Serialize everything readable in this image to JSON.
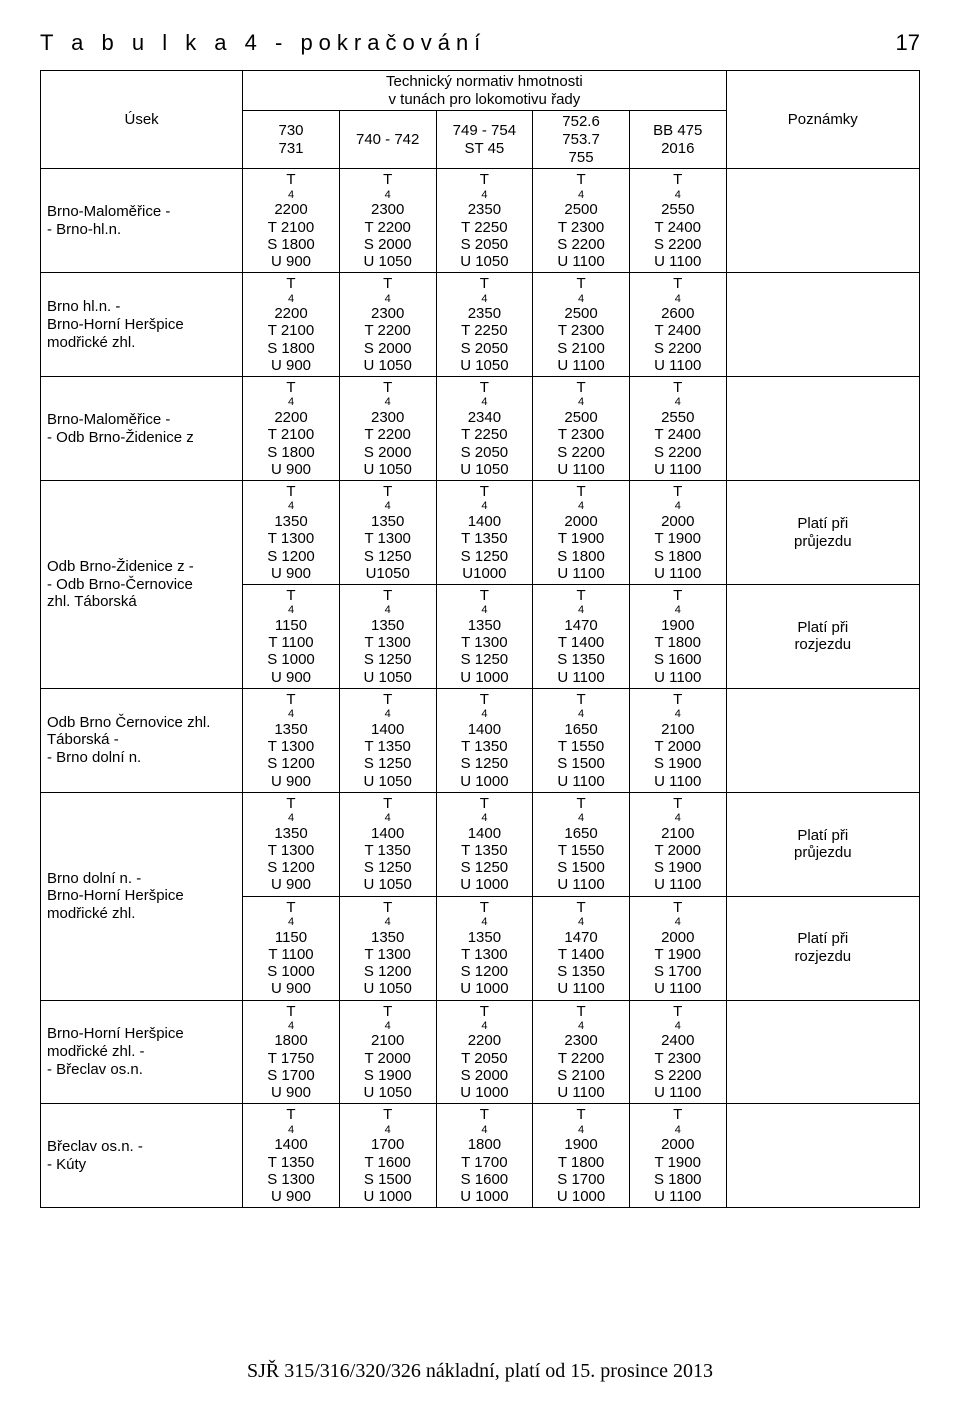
{
  "title_main": "T a b u l k a   4   -  pokračování",
  "title_num": "17",
  "header": {
    "usek": "Úsek",
    "norm_top": "Technický normativ hmotnosti",
    "norm_bot": "v tunách pro lokomotivu řady",
    "pozn": "Poznámky",
    "cols": [
      [
        "730",
        "731"
      ],
      [
        "740 - 742"
      ],
      [
        "749 - 754",
        "ST 45"
      ],
      [
        "752.6",
        "753.7",
        "755"
      ],
      [
        "BB 475",
        "2016"
      ]
    ]
  },
  "rows": [
    {
      "sect": [
        "Brno-Maloměřice -",
        "- Brno-hl.n."
      ],
      "cells": [
        [
          "T₄ 2200",
          "T  2100",
          "S 1800",
          "U  900"
        ],
        [
          "T₄ 2300",
          "T  2200",
          "S 2000",
          "U 1050"
        ],
        [
          "T₄ 2350",
          "T  2250",
          "S 2050",
          "U 1050"
        ],
        [
          "T₄ 2500",
          "T  2300",
          "S 2200",
          "U 1100"
        ],
        [
          "T₄ 2550",
          "T  2400",
          "S 2200",
          "U 1100"
        ]
      ],
      "pozn": []
    },
    {
      "sect": [
        "Brno hl.n. -",
        "Brno-Horní Heršpice",
        "modřické zhl."
      ],
      "cells": [
        [
          "T₄ 2200",
          "T  2100",
          "S 1800",
          "U  900"
        ],
        [
          "T₄ 2300",
          "T  2200",
          "S 2000",
          "U 1050"
        ],
        [
          "T₄ 2350",
          "T  2250",
          "S 2050",
          "U 1050"
        ],
        [
          "T₄ 2500",
          "T  2300",
          "S 2100",
          "U 1100"
        ],
        [
          "T₄ 2600",
          "T  2400",
          "S 2200",
          "U 1100"
        ]
      ],
      "pozn": []
    },
    {
      "sect": [
        " Brno-Maloměřice -",
        "- Odb Brno-Židenice z"
      ],
      "cells": [
        [
          "T₄ 2200",
          "T  2100",
          "S 1800",
          "U  900"
        ],
        [
          "T₄ 2300",
          "T  2200",
          "S 2000",
          "U 1050"
        ],
        [
          "T₄ 2340",
          "T  2250",
          "S 2050",
          "U 1050"
        ],
        [
          "T₄ 2500",
          "T  2300",
          "S 2200",
          "U 1100"
        ],
        [
          "T₄ 2550",
          "T  2400",
          "S 2200",
          "U 1100"
        ]
      ],
      "pozn": []
    },
    {
      "sect": [
        "Odb Brno-Židenice z -",
        "- Odb Brno-Černovice",
        "zhl. Táborská"
      ],
      "span": 2,
      "cells": [
        [
          "T₄ 1350",
          "T  1300",
          "S 1200",
          "U  900"
        ],
        [
          "T₄ 1350",
          "T  1300",
          "S 1250",
          "U1050"
        ],
        [
          "T₄ 1400",
          "T  1350",
          "S 1250",
          "U1000"
        ],
        [
          "T₄ 2000",
          "T  1900",
          "S 1800",
          "U 1100"
        ],
        [
          "T₄ 2000",
          "T  1900",
          "S 1800",
          "U 1100"
        ]
      ],
      "pozn": [
        "Platí při",
        "průjezdu"
      ]
    },
    {
      "cells": [
        [
          "T₄ 1150",
          "T  1100",
          "S 1000",
          "U  900"
        ],
        [
          "T₄ 1350",
          "T  1300",
          "S 1250",
          "U 1050"
        ],
        [
          "T₄ 1350",
          "T  1300",
          "S 1250",
          "U 1000"
        ],
        [
          "T₄ 1470",
          "T  1400",
          "S 1350",
          "U 1100"
        ],
        [
          "T₄ 1900",
          "T  1800",
          "S 1600",
          "U 1100"
        ]
      ],
      "pozn": [
        "Platí při",
        "rozjezdu"
      ]
    },
    {
      "sect": [
        "Odb Brno Černovice  zhl.",
        "Táborská -",
        "- Brno dolní n."
      ],
      "cells": [
        [
          "T₄ 1350",
          "T  1300",
          "S 1200",
          "U  900"
        ],
        [
          "T₄ 1400",
          "T  1350",
          "S 1250",
          "U 1050"
        ],
        [
          "T₄ 1400",
          "T  1350",
          "S 1250",
          "U 1000"
        ],
        [
          "T₄ 1650",
          "T  1550",
          "S 1500",
          "U 1100"
        ],
        [
          "T₄ 2100",
          "T  2000",
          "S 1900",
          "U 1100"
        ]
      ],
      "pozn": []
    },
    {
      "sect": [
        "Brno dolní n. -",
        "Brno-Horní Heršpice",
        "modřické zhl."
      ],
      "span": 2,
      "cells": [
        [
          "T₄ 1350",
          "T  1300",
          "S 1200",
          "U  900"
        ],
        [
          "T₄ 1400",
          "T  1350",
          "S 1250",
          "U 1050"
        ],
        [
          "T₄ 1400",
          "T  1350",
          "S 1250",
          "U 1000"
        ],
        [
          "T₄ 1650",
          "T  1550",
          "S 1500",
          "U 1100"
        ],
        [
          "T₄ 2100",
          "T  2000",
          "S 1900",
          "U 1100"
        ]
      ],
      "pozn": [
        "Platí při",
        "průjezdu"
      ]
    },
    {
      "cells": [
        [
          "T₄ 1150",
          "T  1100",
          "S 1000",
          "U  900"
        ],
        [
          "T₄ 1350",
          "T  1300",
          "S 1200",
          "U 1050"
        ],
        [
          "T₄ 1350",
          "T  1300",
          "S 1200",
          "U 1000"
        ],
        [
          "T₄ 1470",
          "T  1400",
          "S 1350",
          "U 1100"
        ],
        [
          "T₄ 2000",
          "T  1900",
          "S 1700",
          "U 1100"
        ]
      ],
      "pozn": [
        "Platí při",
        "rozjezdu"
      ]
    },
    {
      "sect": [
        "Brno-Horní Heršpice",
        "modřické zhl. -",
        "- Břeclav os.n."
      ],
      "cells": [
        [
          "T₄ 1800",
          "T  1750",
          "S 1700",
          "U  900"
        ],
        [
          "T₄ 2100",
          "T  2000",
          "S 1900",
          "U 1050"
        ],
        [
          "T₄ 2200",
          "T  2050",
          "S 2000",
          "U 1000"
        ],
        [
          "T₄ 2300",
          "T  2200",
          "S 2100",
          "U 1100"
        ],
        [
          "T₄ 2400",
          "T  2300",
          "S 2200",
          "U 1100"
        ]
      ],
      "pozn": []
    },
    {
      "sect": [
        "Břeclav os.n. -",
        "- Kúty"
      ],
      "cells": [
        [
          "T₄ 1400",
          "T  1350",
          "S 1300",
          "U  900"
        ],
        [
          "T₄ 1700",
          "T  1600",
          "S 1500",
          "U 1000"
        ],
        [
          "T₄ 1800",
          "T  1700",
          "S 1600",
          "U 1000"
        ],
        [
          "T₄ 1900",
          "T  1800",
          "S 1700",
          "U 1000"
        ],
        [
          "T₄ 2000",
          "T  1900",
          "S 1800",
          "U 1100"
        ]
      ],
      "pozn": []
    }
  ],
  "footer": "SJŘ 315/316/320/326 nákladní, platí od 15. prosince 2013"
}
